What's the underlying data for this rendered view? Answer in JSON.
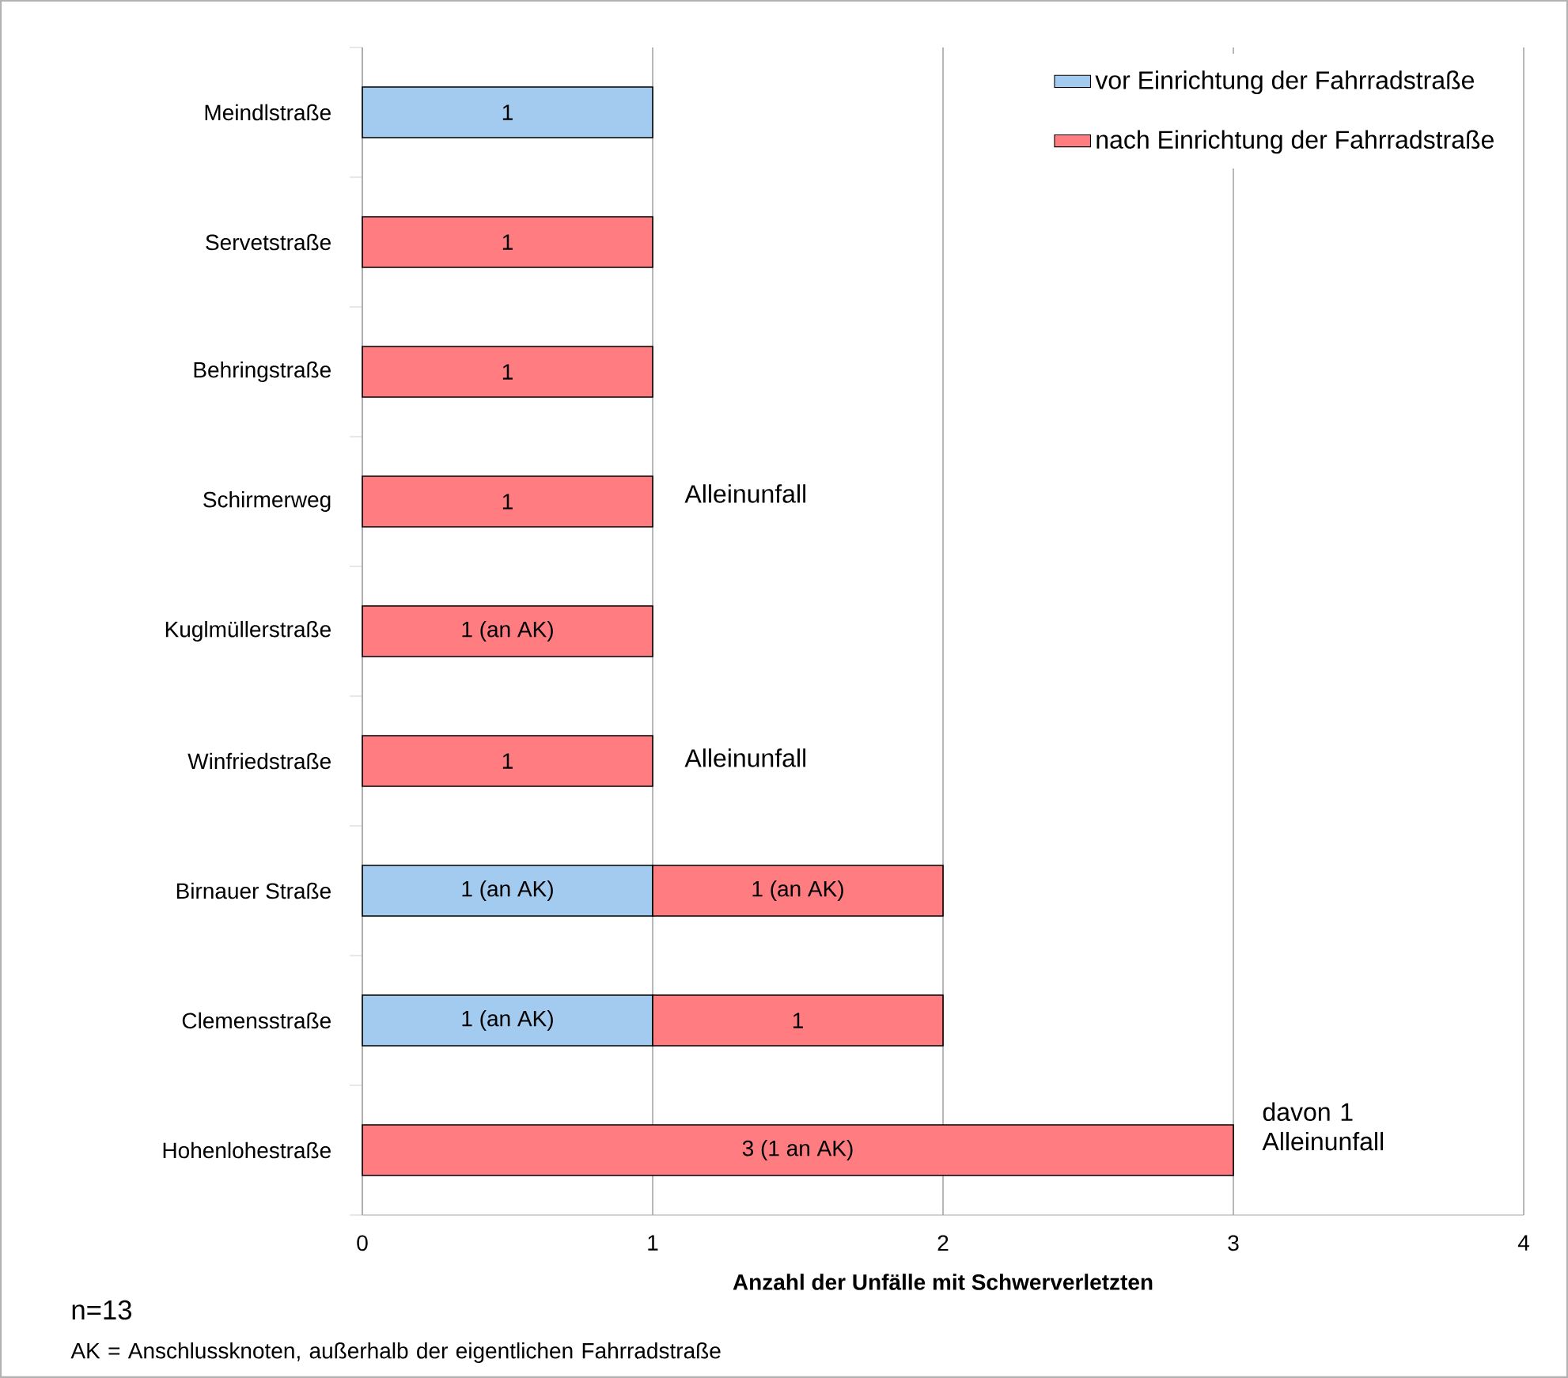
{
  "chart_data": {
    "type": "bar",
    "orientation": "horizontal",
    "stacked": true,
    "categories": [
      "Meindlstraße",
      "Servetstraße",
      "Behringstraße",
      "Schirmerweg",
      "Kuglmüllerstraße",
      "Winfriedstraße",
      "Birnauer Straße",
      "Clemensstraße",
      "Hohenlohestraße"
    ],
    "series": [
      {
        "name": "vor Einrichtung der Fahrradstraße",
        "color": "#a3cbf0",
        "values": [
          1,
          null,
          null,
          null,
          null,
          null,
          1,
          1,
          null
        ],
        "value_labels": [
          "1",
          null,
          null,
          null,
          null,
          null,
          "1 (an AK)",
          "1 (an AK)",
          null
        ]
      },
      {
        "name": "nach Einrichtung der Fahrradstraße",
        "color": "#ff7c80",
        "values": [
          null,
          1,
          1,
          1,
          1,
          1,
          1,
          1,
          3
        ],
        "value_labels": [
          null,
          "1",
          "1",
          "1",
          "1 (an AK)",
          "1",
          "1 (an AK)",
          "1",
          "3 (1 an AK)"
        ]
      }
    ],
    "xlabel": "Anzahl der Unfälle mit Schwerverletzten",
    "xlim": [
      0,
      4
    ],
    "xticks": [
      0,
      1,
      2,
      3,
      4
    ],
    "grid": "x",
    "legend": "top right",
    "annotations": [
      "Alleinunfall",
      "Alleinunfall",
      "davon 1 Alleinunfall",
      "n=13",
      "AK = Anschlussknoten, außerhalb der eigentlichen Fahrradstraße"
    ]
  }
}
